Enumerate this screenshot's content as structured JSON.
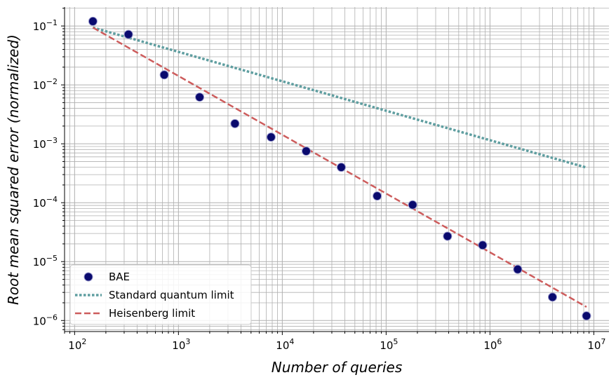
{
  "chart_data": {
    "type": "scatter",
    "title": "",
    "xlabel": "Number of queries",
    "ylabel": "Root mean squared error (normalized)",
    "xscale": "log",
    "yscale": "log",
    "xlim": [
      80,
      14000000
    ],
    "ylim": [
      6.5e-07,
      0.21
    ],
    "grid": true,
    "legend_position": "bottom-left",
    "x_ticks": [
      {
        "value": 100,
        "base": "10",
        "exp": "2"
      },
      {
        "value": 1000,
        "base": "10",
        "exp": "3"
      },
      {
        "value": 10000,
        "base": "10",
        "exp": "4"
      },
      {
        "value": 100000,
        "base": "10",
        "exp": "5"
      },
      {
        "value": 1000000,
        "base": "10",
        "exp": "6"
      },
      {
        "value": 10000000,
        "base": "10",
        "exp": "7"
      }
    ],
    "y_ticks": [
      {
        "value": 1e-06,
        "base": "10",
        "exp": "−6"
      },
      {
        "value": 1e-05,
        "base": "10",
        "exp": "−5"
      },
      {
        "value": 0.0001,
        "base": "10",
        "exp": "−4"
      },
      {
        "value": 0.001,
        "base": "10",
        "exp": "−3"
      },
      {
        "value": 0.01,
        "base": "10",
        "exp": "−2"
      },
      {
        "value": 0.1,
        "base": "10",
        "exp": "−1"
      }
    ],
    "series": [
      {
        "name": "BAE",
        "kind": "scatter",
        "color": "#0a0a6e",
        "x": [
          150,
          330,
          730,
          1600,
          3500,
          7800,
          17000,
          37000,
          82000,
          180000,
          390000,
          850000,
          1850000,
          4000000,
          8500000
        ],
        "y": [
          0.12,
          0.072,
          0.0148,
          0.0062,
          0.0022,
          0.0013,
          0.00075,
          0.0004,
          0.00013,
          9.2e-05,
          2.7e-05,
          1.9e-05,
          7.4e-06,
          2.5e-06,
          1.2e-06
        ]
      },
      {
        "name": "Standard quantum limit",
        "kind": "line",
        "style": "dotted",
        "color": "#5f9ea0",
        "x": [
          150,
          8500000
        ],
        "y": [
          0.094,
          0.000395
        ]
      },
      {
        "name": "Heisenberg limit",
        "kind": "line",
        "style": "dashed",
        "color": "#cd5c5c",
        "x": [
          150,
          8500000
        ],
        "y": [
          0.094,
          1.7e-06
        ]
      }
    ]
  }
}
